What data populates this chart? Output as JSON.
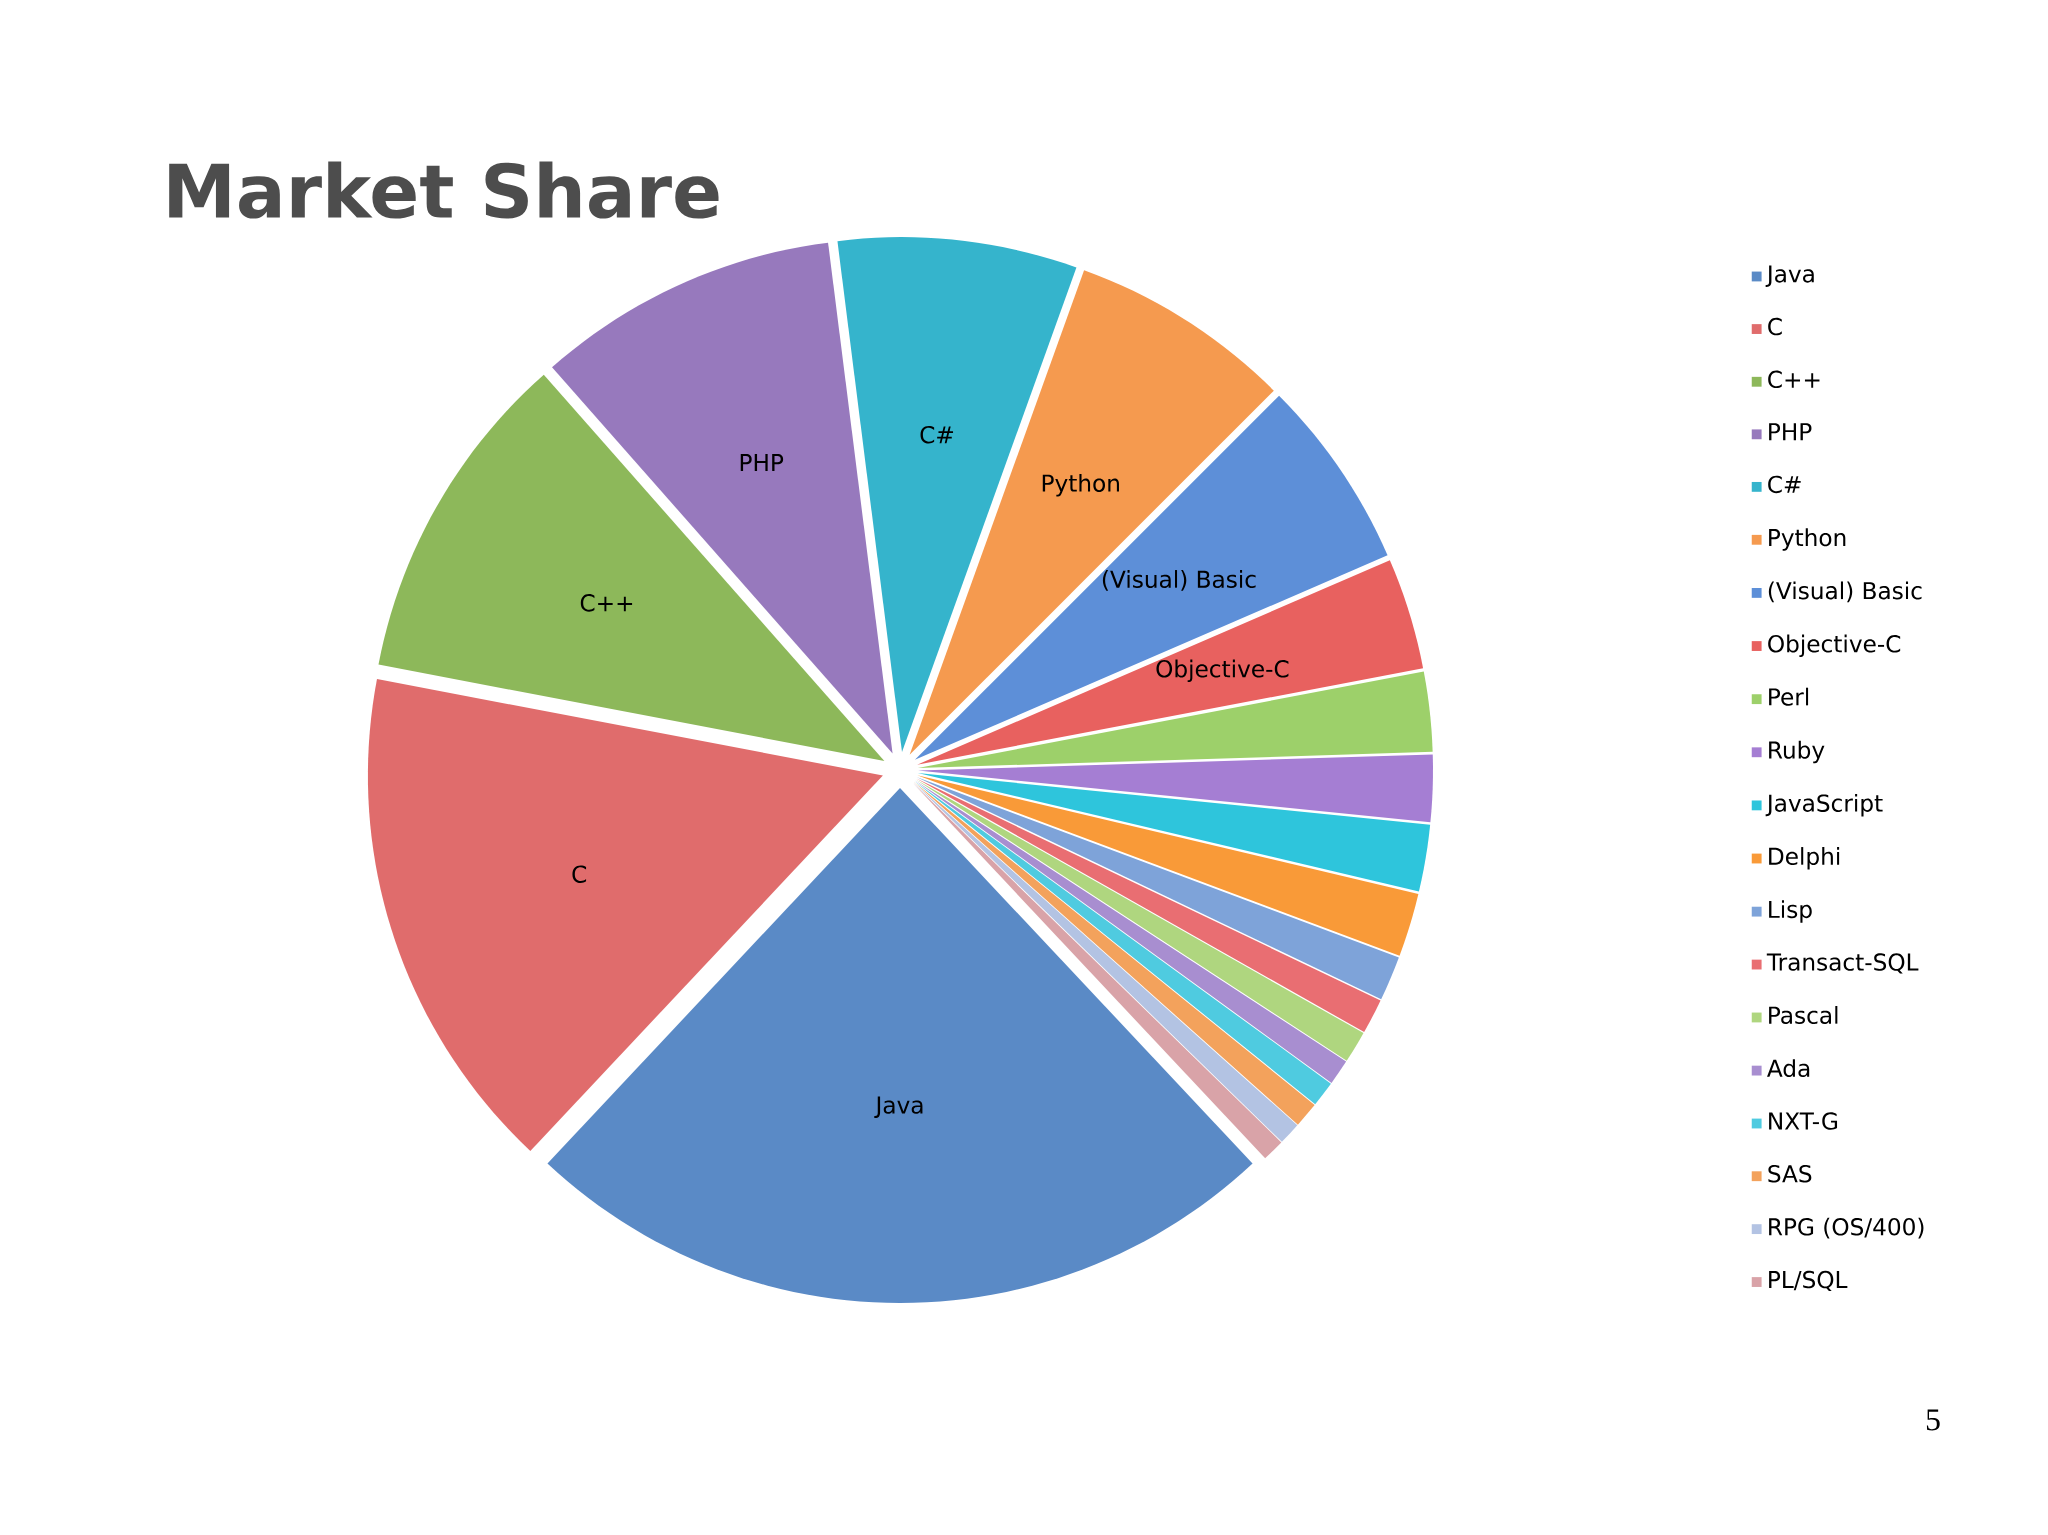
{
  "chart_data": {
    "type": "pie",
    "title": "Market Share",
    "categories": [
      "Java",
      "C",
      "C++",
      "PHP",
      "C#",
      "Python",
      "(Visual) Basic",
      "Objective-C",
      "Perl",
      "Ruby",
      "JavaScript",
      "Delphi",
      "Lisp",
      "Transact-SQL",
      "Pascal",
      "Ada",
      "NXT-G",
      "SAS",
      "RPG (OS/400)",
      "PL/SQL"
    ],
    "values": [
      24,
      16,
      10.5,
      9.5,
      7.5,
      7,
      6,
      3.5,
      2.5,
      2.1,
      2.1,
      2,
      1.4,
      1.1,
      1,
      0.8,
      0.8,
      0.8,
      0.7,
      0.7
    ],
    "colors": [
      "#5a8ac6",
      "#e06c6c",
      "#8db85a",
      "#9779bd",
      "#35b4cc",
      "#f59a4f",
      "#5d8fd8",
      "#e8615f",
      "#9dd06a",
      "#a57ed3",
      "#2ec5dc",
      "#f99a38",
      "#7ea3d9",
      "#e96e72",
      "#afd67f",
      "#a88ed0",
      "#4fcbe0",
      "#f3a25c",
      "#b3c3e3",
      "#d9a3a8"
    ],
    "legend": "right",
    "annotations": [
      "5"
    ]
  }
}
